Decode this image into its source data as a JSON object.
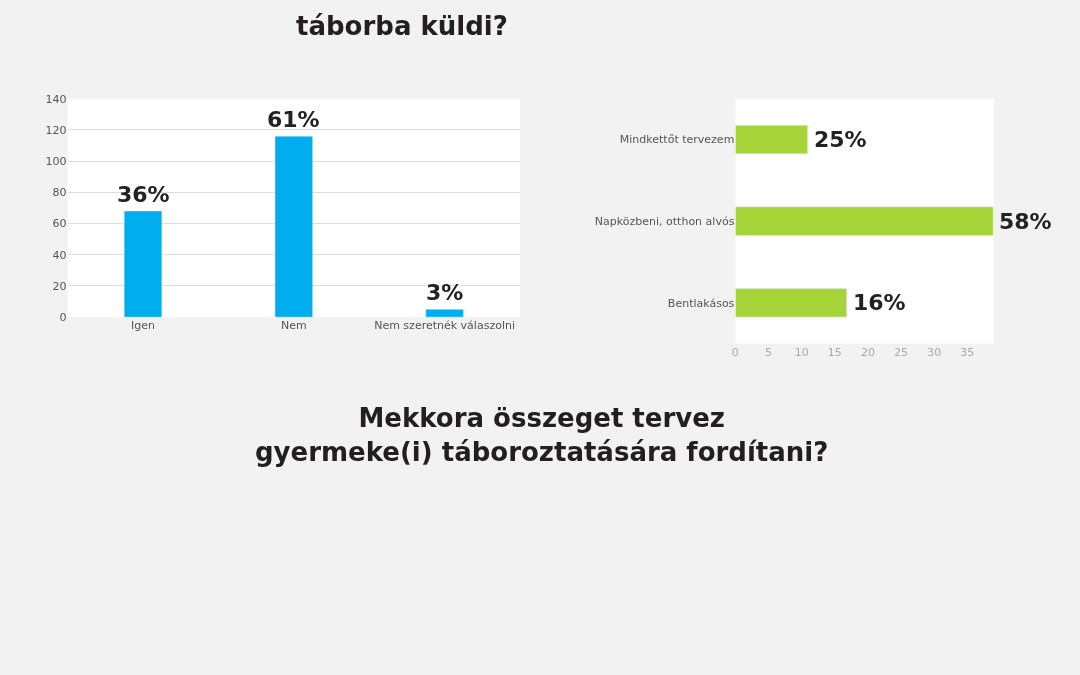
{
  "chart_data": [
    {
      "type": "bar",
      "title": "táborba küldi?",
      "categories": [
        "Igen",
        "Nem",
        "Nem szeretnék válaszolni"
      ],
      "values": [
        68,
        116,
        5
      ],
      "color": "#00aeef",
      "ylim": [
        0,
        140
      ],
      "yticks": [
        0,
        20,
        40,
        60,
        80,
        100,
        120,
        140
      ],
      "grid": "y",
      "annotations": [
        {
          "text": "36%",
          "x": "Igen",
          "y": 68
        },
        {
          "text": "61%",
          "x": "Nem",
          "y": 116
        },
        {
          "text": "3%",
          "x": "Nem szeretnék válaszolni",
          "y": 5
        }
      ]
    },
    {
      "type": "bar",
      "orientation": "horizontal",
      "categories": [
        "Mindkettőt tervezem",
        "Napközbeni, otthon alvós",
        "Bentlakásos"
      ],
      "values": [
        10.9,
        38.9,
        16.8
      ],
      "color": "#a6d53a",
      "xlim": [
        0,
        39
      ],
      "xticks": [
        0,
        5,
        10,
        15,
        20,
        25,
        30,
        35
      ],
      "annotations": [
        {
          "text": "25%",
          "x": 10.9,
          "y": "Mindkettőt tervezem"
        },
        {
          "text": "58%",
          "x": 38.9,
          "y": "Napközbeni, otthon alvós"
        },
        {
          "text": "16%",
          "x": 16.8,
          "y": "Bentlakásos"
        }
      ]
    },
    {
      "type": "other",
      "title": "Mekkora összeget tervez gyermeke(i) táboroztatására fordítani?"
    }
  ]
}
